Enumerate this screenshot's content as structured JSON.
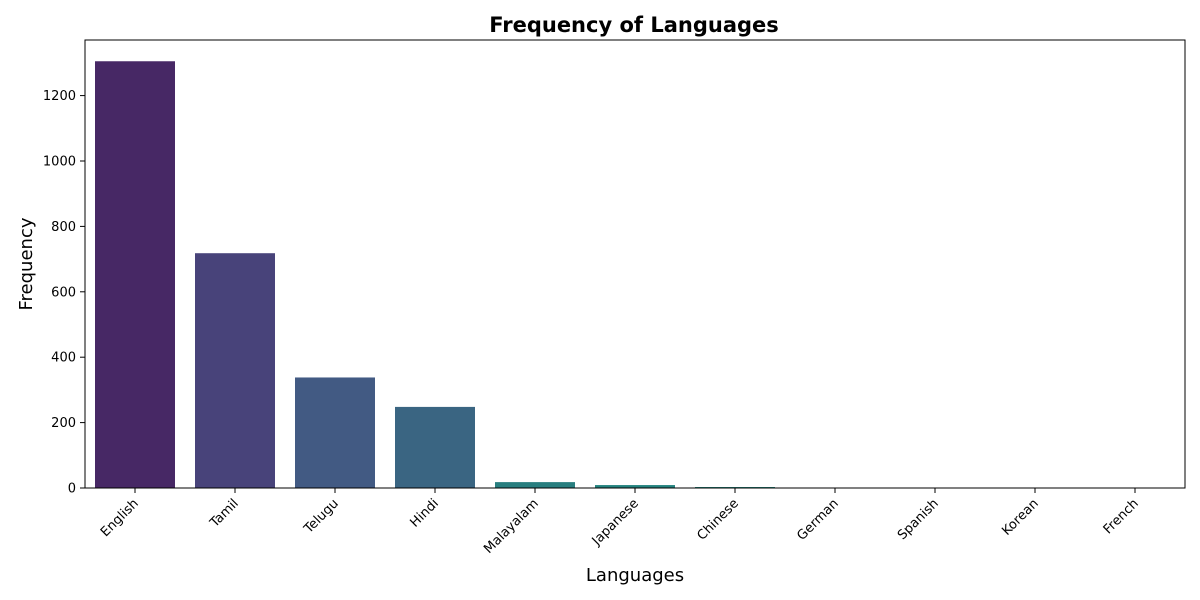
{
  "chart_data": {
    "type": "bar",
    "title": "Frequency of Languages",
    "xlabel": "Languages",
    "ylabel": "Frequency",
    "categories": [
      "English",
      "Tamil",
      "Telugu",
      "Hindi",
      "Malayalam",
      "Japanese",
      "Chinese",
      "German",
      "Spanish",
      "Korean",
      "French"
    ],
    "values": [
      1305,
      718,
      338,
      248,
      18,
      9,
      3,
      1,
      1,
      1,
      1
    ],
    "colors": [
      "#472865",
      "#48437a",
      "#425a83",
      "#3a6582",
      "#287e7f",
      "#25837f",
      "#22887e",
      "#1f8f79",
      "#259a73",
      "#38a96a",
      "#4fb860"
    ],
    "yticks": [
      0,
      200,
      400,
      600,
      800,
      1000,
      1200
    ],
    "ylim": [
      0,
      1370
    ],
    "grid": false,
    "legend": "none"
  }
}
